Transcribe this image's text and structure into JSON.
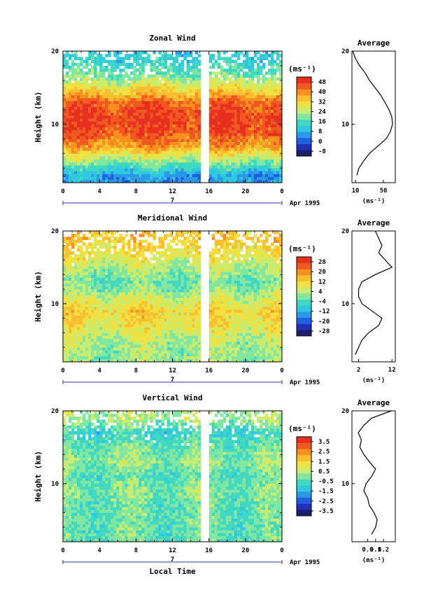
{
  "colors": {
    "palette": [
      "#1b1f6b",
      "#2030b8",
      "#2060e0",
      "#2a9ae8",
      "#30c8e0",
      "#40d8c0",
      "#80e6a0",
      "#c8ec70",
      "#f0e040",
      "#f8c030",
      "#f89020",
      "#f05a20",
      "#e83020"
    ],
    "axis": "#000000",
    "data_line": "#000000",
    "gap": "#ffffff"
  },
  "common": {
    "x_ticks": [
      "0",
      "4",
      "8",
      "12",
      "16",
      "20",
      "0"
    ],
    "date_tick_label": "7",
    "date_label": "Apr 1995",
    "ylabel": "Height (km)",
    "y_ticks": [
      "20",
      "10"
    ],
    "unit": "(ms⁻¹)",
    "avg_title": "Average",
    "xlabel": "Local Time"
  },
  "chart_data": [
    {
      "type": "heatmap",
      "title": "Zonal Wind",
      "ylabel": "Height (km)",
      "xlabel": "",
      "ylim": [
        2,
        20
      ],
      "xlim_hours": [
        0,
        24
      ],
      "data_gap_hours": [
        15.2,
        16.0
      ],
      "colorbar": {
        "unit": "(ms⁻¹)",
        "ticks": [
          "48",
          "40",
          "32",
          "24",
          "16",
          "8",
          "0",
          "-8"
        ],
        "range": [
          -12,
          52
        ]
      },
      "field_profile": {
        "height_km": [
          3,
          5,
          7,
          9,
          11,
          13,
          15,
          17,
          19
        ],
        "value": [
          6,
          22,
          38,
          46,
          48,
          44,
          30,
          18,
          12
        ]
      },
      "average_profile": {
        "xlim": [
          5,
          67
        ],
        "x_ticks": [
          "10",
          "50"
        ],
        "unit": "(ms⁻¹)",
        "height_km": [
          3,
          4,
          5,
          6,
          7,
          8,
          9,
          10,
          11,
          12,
          13,
          14,
          15,
          16,
          17,
          18,
          19,
          20
        ],
        "values": [
          12,
          15,
          22,
          30,
          42,
          54,
          60,
          63,
          62,
          58,
          52,
          46,
          38,
          30,
          24,
          16,
          10,
          6
        ]
      }
    },
    {
      "type": "heatmap",
      "title": "Meridional Wind",
      "ylabel": "Height (km)",
      "xlabel": "",
      "ylim": [
        2,
        20
      ],
      "xlim_hours": [
        0,
        24
      ],
      "data_gap_hours": [
        15.2,
        16.0
      ],
      "colorbar": {
        "unit": "(ms⁻¹)",
        "ticks": [
          "28",
          "20",
          "12",
          "4",
          "-4",
          "-12",
          "-20",
          "-28"
        ],
        "range": [
          -32,
          32
        ]
      },
      "field_profile": {
        "height_km": [
          3,
          5,
          7,
          9,
          11,
          13,
          15,
          17,
          19
        ],
        "value": [
          2,
          4,
          9,
          12,
          5,
          -2,
          4,
          10,
          14
        ]
      },
      "average_profile": {
        "xlim": [
          0,
          13
        ],
        "x_ticks": [
          "2",
          "12"
        ],
        "unit": "(ms⁻¹)",
        "height_km": [
          3,
          4,
          5,
          6,
          7,
          8,
          9,
          10,
          11,
          12,
          13,
          14,
          15,
          16,
          17,
          18,
          19,
          20
        ],
        "values": [
          1,
          2,
          3,
          5,
          8,
          9,
          6,
          3,
          2,
          2,
          3,
          7,
          12,
          10,
          8,
          9,
          8,
          7
        ]
      }
    },
    {
      "type": "heatmap",
      "title": "Vertical Wind",
      "ylabel": "Height (km)",
      "xlabel": "Local Time",
      "ylim": [
        2,
        20
      ],
      "xlim_hours": [
        0,
        24
      ],
      "data_gap_hours": [
        15.2,
        16.0
      ],
      "colorbar": {
        "unit": "(ms⁻¹)",
        "ticks": [
          "3.5",
          "2.5",
          "1.5",
          "0.5",
          "-0.5",
          "-1.5",
          "-2.5",
          "-3.5"
        ],
        "range": [
          -4,
          4
        ]
      },
      "field_profile": {
        "height_km": [
          3,
          5,
          7,
          9,
          11,
          13,
          15,
          17,
          19
        ],
        "value": [
          -0.3,
          -0.2,
          -0.3,
          0.1,
          -0.4,
          0.2,
          -0.2,
          -0.8,
          0.4
        ]
      },
      "average_profile": {
        "xlim": [
          -0.2,
          0.35
        ],
        "x_ticks": [
          "0.0",
          "0.1",
          "0.2"
        ],
        "unit": "(ms⁻¹)",
        "height_km": [
          3,
          4,
          5,
          6,
          7,
          8,
          9,
          10,
          11,
          12,
          13,
          14,
          15,
          16,
          17,
          18,
          19,
          20
        ],
        "values": [
          0.05,
          0.1,
          0.12,
          0.08,
          0.02,
          0.0,
          -0.05,
          -0.02,
          0.05,
          0.1,
          0.02,
          -0.05,
          -0.1,
          -0.08,
          -0.12,
          -0.05,
          0.05,
          0.3
        ]
      }
    }
  ]
}
